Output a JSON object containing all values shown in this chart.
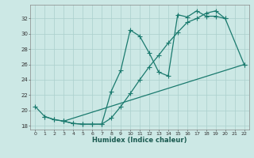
{
  "xlabel": "Humidex (Indice chaleur)",
  "bg_color": "#cce8e5",
  "grid_color": "#aacfcc",
  "line_color": "#1a7a6e",
  "xlim": [
    -0.5,
    22.5
  ],
  "ylim": [
    17.5,
    33.8
  ],
  "ytick_values": [
    18,
    20,
    22,
    24,
    26,
    28,
    30,
    32
  ],
  "curve1_x": [
    0,
    1,
    2,
    3,
    4,
    5,
    6,
    7,
    8,
    9,
    10,
    11,
    12,
    13,
    14,
    15,
    16,
    17,
    18,
    19,
    20
  ],
  "curve1_y": [
    20.5,
    19.2,
    18.8,
    18.6,
    18.3,
    18.2,
    18.2,
    18.2,
    22.5,
    25.2,
    30.5,
    29.7,
    27.5,
    25.0,
    24.5,
    32.5,
    32.2,
    33.0,
    32.3,
    32.3,
    32.0
  ],
  "curve2_x": [
    1,
    2,
    3,
    4,
    5,
    6,
    7,
    8,
    9,
    10,
    11,
    12,
    13,
    14,
    15,
    16,
    17,
    18,
    19,
    20,
    22
  ],
  "curve2_y": [
    19.2,
    18.8,
    18.6,
    18.3,
    18.2,
    18.2,
    18.2,
    19.0,
    20.5,
    22.2,
    24.0,
    25.7,
    27.2,
    28.8,
    30.2,
    31.5,
    32.0,
    32.7,
    33.0,
    32.0,
    26.0
  ],
  "curve3_x": [
    3,
    22
  ],
  "curve3_y": [
    18.6,
    26.0
  ]
}
